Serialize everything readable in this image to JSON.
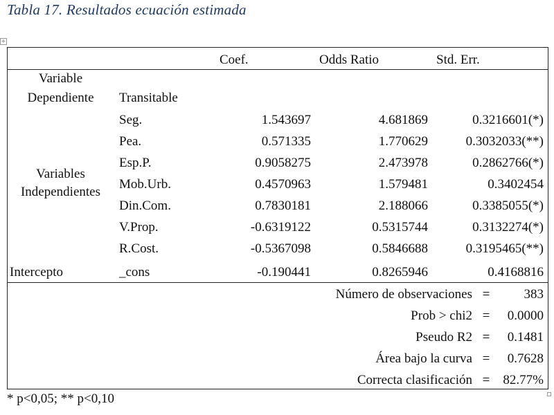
{
  "caption": "Tabla 17. Resultados ecuación estimada",
  "header": {
    "coef": "Coef.",
    "odds": "Odds Ratio",
    "stderr": "Std. Err."
  },
  "dependent": {
    "label_line1": "Variable",
    "label_line2": "Dependiente",
    "name": "Transitable"
  },
  "independents_label": {
    "line1": "Variables",
    "line2": "Independientes"
  },
  "rows": [
    {
      "name": "Seg.",
      "coef": "1.543697",
      "odds": "4.681869",
      "stderr": "0.3216601(*)"
    },
    {
      "name": "Pea.",
      "coef": "0.571335",
      "odds": "1.770629",
      "stderr": "0.3032033(**)"
    },
    {
      "name": "Esp.P.",
      "coef": "0.9058275",
      "odds": "2.473978",
      "stderr": "0.2862766(*)"
    },
    {
      "name": "Mob.Urb.",
      "coef": "0.4570963",
      "odds": "1.579481",
      "stderr": "0.3402454"
    },
    {
      "name": "Din.Com.",
      "coef": "0.7830181",
      "odds": "2.188066",
      "stderr": "0.3385055(*)"
    },
    {
      "name": "V.Prop.",
      "coef": "-0.6319122",
      "odds": "0.5315744",
      "stderr": "0.3132274(*)"
    },
    {
      "name": "R.Cost.",
      "coef": "-0.5367098",
      "odds": "0.5846688",
      "stderr": "0.3195465(**)"
    }
  ],
  "intercept": {
    "label": "Intercepto",
    "name": "_cons",
    "coef": "-0.190441",
    "odds": "0.8265946",
    "stderr": "0.4168816"
  },
  "stats": [
    {
      "label": "Número de observaciones",
      "eq": "=",
      "value": "383"
    },
    {
      "label": "Prob > chi2",
      "eq": "=",
      "value": "0.0000"
    },
    {
      "label": "Pseudo R2",
      "eq": "=",
      "value": "0.1481"
    },
    {
      "label": "Área bajo la curva",
      "eq": "=",
      "value": "0.7628"
    },
    {
      "label": "Correcta clasificación",
      "eq": "=",
      "value": "82.77%"
    }
  ],
  "footnote": "* p<0,05; ** p<0,10"
}
